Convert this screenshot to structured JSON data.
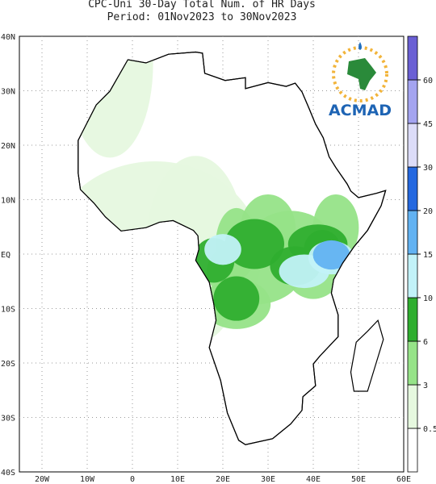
{
  "header": {
    "title": "CPC-Uni 30-Day Total Num. of HR Days",
    "period": "Period: 01Nov2023 to 30Nov2023"
  },
  "logo": {
    "text": "ACMAD"
  },
  "axes": {
    "lat_labels": [
      "40N",
      "30N",
      "20N",
      "10N",
      "EQ",
      "10S",
      "20S",
      "30S",
      "40S"
    ],
    "lon_labels": [
      "20W",
      "10W",
      "0",
      "10E",
      "20E",
      "30E",
      "40E",
      "50E",
      "60E"
    ]
  },
  "legend": {
    "ticks": [
      0.5,
      3,
      6,
      10,
      15,
      20,
      30,
      45,
      60
    ],
    "colors": [
      "#ffffff",
      "#e6f8df",
      "#96e388",
      "#2fae2f",
      "#c2f2f8",
      "#62b2f2",
      "#2468e0",
      "#dcdcf8",
      "#a4a4f0",
      "#6a5fd4"
    ]
  }
}
